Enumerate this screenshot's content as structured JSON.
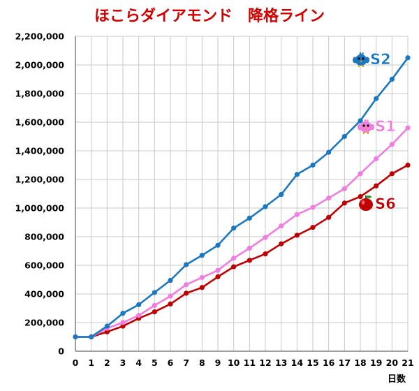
{
  "chart_data": {
    "type": "line",
    "title": "ほこらダイアモンド　降格ライン",
    "xlabel": "日数",
    "ylabel": "",
    "x": [
      0,
      1,
      2,
      3,
      4,
      5,
      6,
      7,
      8,
      9,
      10,
      11,
      12,
      13,
      14,
      15,
      16,
      17,
      18,
      19,
      20,
      21
    ],
    "xlim": [
      0,
      21
    ],
    "ylim": [
      0,
      2200000
    ],
    "y_ticks": [
      "0",
      "200,000",
      "400,000",
      "600,000",
      "800,000",
      "1,000,000",
      "1,200,000",
      "1,400,000",
      "1,600,000",
      "1,800,000",
      "2,000,000",
      "2,200,000"
    ],
    "x_ticks": [
      "0",
      "1",
      "2",
      "3",
      "4",
      "5",
      "6",
      "7",
      "8",
      "9",
      "10",
      "11",
      "12",
      "13",
      "14",
      "15",
      "16",
      "17",
      "18",
      "19",
      "20",
      "21"
    ],
    "grid": true,
    "series": [
      {
        "name": "S2",
        "color": "#1a78c2",
        "icon": "blue-chick-icon",
        "values": [
          100000,
          100000,
          175000,
          265000,
          325000,
          410000,
          495000,
          605000,
          670000,
          740000,
          860000,
          930000,
          1010000,
          1095000,
          1235000,
          1300000,
          1390000,
          1500000,
          1610000,
          1765000,
          1900000,
          2050000
        ]
      },
      {
        "name": "S1",
        "color": "#f07ee0",
        "icon": "pink-chick-icon",
        "values": [
          100000,
          100000,
          160000,
          200000,
          250000,
          320000,
          385000,
          465000,
          515000,
          565000,
          650000,
          720000,
          795000,
          875000,
          955000,
          1005000,
          1070000,
          1135000,
          1240000,
          1345000,
          1445000,
          1560000
        ]
      },
      {
        "name": "S6",
        "color": "#c00000",
        "icon": "red-apple-icon",
        "values": [
          100000,
          100000,
          135000,
          175000,
          230000,
          275000,
          330000,
          405000,
          445000,
          520000,
          590000,
          635000,
          680000,
          750000,
          810000,
          865000,
          935000,
          1035000,
          1080000,
          1155000,
          1240000,
          1300000
        ]
      }
    ]
  }
}
